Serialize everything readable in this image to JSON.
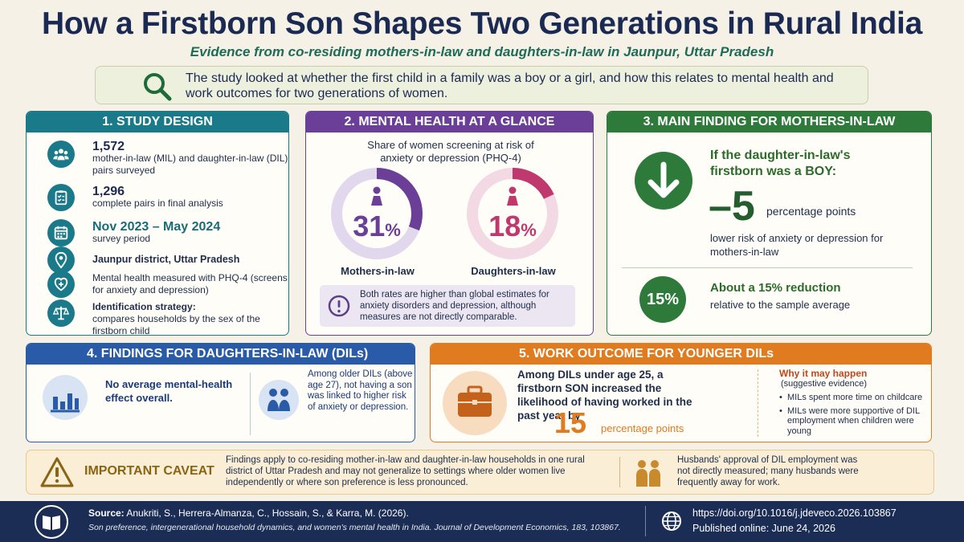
{
  "title": "How a Firstborn Son Shapes Two Generations in Rural India",
  "subtitle": "Evidence from co-residing mothers-in-law and daughters-in-law in Jaunpur, Uttar Pradesh",
  "intro": "The study looked at whether the first child in a family was a boy or a girl, and how this relates to mental health and work outcomes for two generations of women.",
  "colors": {
    "teal": "#1a7a8a",
    "purple": "#6b3f98",
    "green": "#2d7a3a",
    "blue": "#2a5ba8",
    "orange": "#e07b1f",
    "pink": "#c0396e",
    "navy": "#1b2d55"
  },
  "study_design": {
    "header": "1. STUDY DESIGN",
    "items": [
      {
        "icon": "group-icon",
        "value": "1,572",
        "text": "mother-in-law (MIL) and daughter-in-law (DIL) pairs surveyed"
      },
      {
        "icon": "clipboard-icon",
        "value": "1,296",
        "text": "complete pairs in final analysis"
      },
      {
        "icon": "calendar-icon",
        "value": "Nov 2023 – May 2024",
        "text": "survey period"
      },
      {
        "icon": "location-pin-icon",
        "value": "",
        "text": "Jaunpur district, Uttar Pradesh"
      },
      {
        "icon": "health-heart-icon",
        "value": "",
        "text": "Mental health measured with PHQ-4 (screens for anxiety and depression)"
      },
      {
        "icon": "scales-icon",
        "value": "Identification strategy:",
        "text": "compares households by the sex of the firstborn child"
      }
    ]
  },
  "mental_health": {
    "header": "2. MENTAL HEALTH AT A GLANCE",
    "caption": "Share of women screening at risk of anxiety or depression (PHQ-4)",
    "rings": [
      {
        "label": "Mothers-in-law",
        "value": 31,
        "display": "31",
        "unit": "%",
        "color": "#6b3f98",
        "track": "#e2d8ee"
      },
      {
        "label": "Daughters-in-law",
        "value": 18,
        "display": "18",
        "unit": "%",
        "color": "#c0396e",
        "track": "#f3d9e3"
      }
    ],
    "note": "Both rates are higher than global estimates for anxiety disorders and depression, although measures are not directly comparable."
  },
  "main_finding": {
    "header": "3. MAIN FINDING FOR MOTHERS-IN-LAW",
    "lead": "If the daughter-in-law's firstborn was a BOY:",
    "big_value": "–5",
    "big_unit": "percentage points",
    "description": "lower risk of anxiety or depression for mothers-in-law",
    "badge": "15%",
    "reduction_title": "About a 15% reduction",
    "reduction_text": "relative to the sample average"
  },
  "dil_findings": {
    "header": "4. FINDINGS FOR DAUGHTERS-IN-LAW (DILs)",
    "left": "No average mental-health effect overall.",
    "right": "Among older DILs (above age 27), not having a son was linked to higher risk of anxiety or depression."
  },
  "work_outcome": {
    "header": "5. WORK OUTCOME FOR YOUNGER DILs",
    "text": "Among DILs under age 25, a firstborn SON increased the likelihood of having worked in the past year by",
    "big_value": "15",
    "big_unit": "percentage points",
    "why_title": "Why it may happen",
    "why_sub": "(suggestive evidence)",
    "reasons": [
      "MILs spent more time on childcare",
      "MILs were more supportive of DIL employment when children were young"
    ]
  },
  "caveat": {
    "title": "IMPORTANT CAVEAT",
    "text": "Findings apply to co-residing mother-in-law and daughter-in-law households in one rural district of Uttar Pradesh and may not generalize to settings where older women live independently or where son preference is less pronounced.",
    "side": "Husbands' approval of DIL employment was not directly measured; many husbands were frequently away for work."
  },
  "footer": {
    "source_label": "Source:",
    "authors": "Anukriti, S., Herrera-Almanza, C., Hossain, S., & Karra, M. (2026).",
    "journal": "Son preference, intergenerational household dynamics, and women's mental health in India. Journal of Development Economics, 183, 103867.",
    "doi": "https://doi.org/10.1016/j.jdeveco.2026.103867",
    "published": "Published online: June 24, 2026"
  }
}
